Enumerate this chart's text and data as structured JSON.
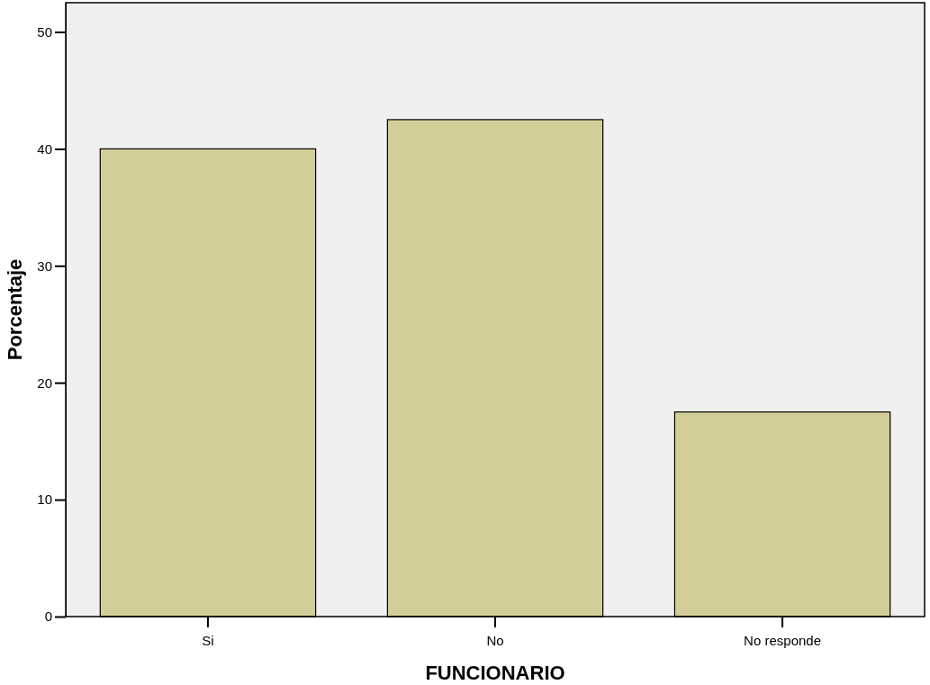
{
  "chart_data": {
    "type": "bar",
    "xlabel": "FUNCIONARIO",
    "ylabel": "Porcentaje",
    "categories": [
      "Si",
      "No",
      "No responde"
    ],
    "values": [
      40,
      42.5,
      17.5
    ],
    "color": "#d3ce98",
    "ylim": [
      0,
      52.5
    ],
    "yticks": [
      0,
      10,
      20,
      30,
      40,
      50
    ],
    "grid": false
  }
}
